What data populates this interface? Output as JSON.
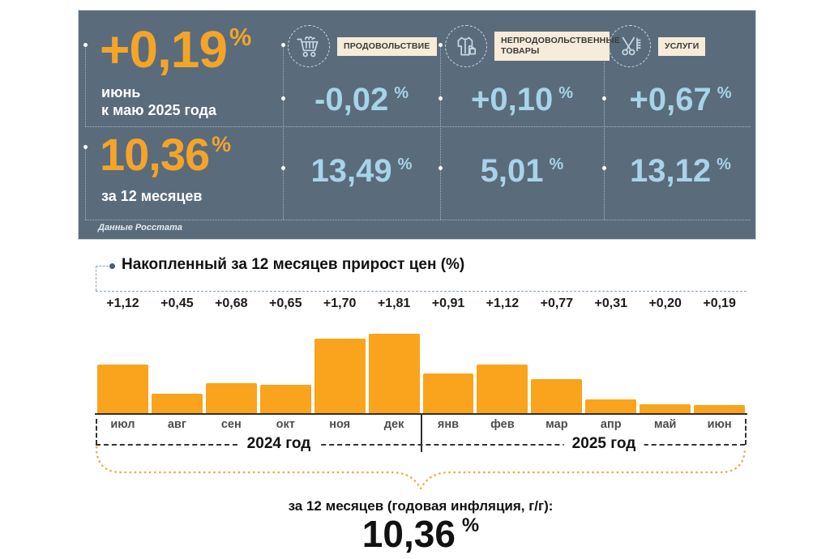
{
  "signs": {
    "percent": "%"
  },
  "panel": {
    "background": "#5a6b7c",
    "accent_orange": "#f5a428",
    "value_blue": "#a8d3e9",
    "chip_bg": "#f6ecd9",
    "headline_value": "+0,19",
    "headline_period_1": "июнь",
    "headline_period_2": "к маю 2025 года",
    "annual_value": "10,36",
    "annual_label": "за 12 месяцев",
    "source": "Данные Росстата",
    "categories": [
      {
        "icon": "cart-icon",
        "label": "ПРОДОВОЛЬСТВИЕ",
        "monthly": "-0,02",
        "annual": "13,49"
      },
      {
        "icon": "clothes-icon",
        "label": "НЕПРОДОВОЛЬСТВЕННЫЕ ТОВАРЫ",
        "monthly": "+0,10",
        "annual": "5,01"
      },
      {
        "icon": "scissors-icon",
        "label": "УСЛУГИ",
        "monthly": "+0,67",
        "annual": "13,12"
      }
    ]
  },
  "chart_data": {
    "type": "bar",
    "title": "Накопленный за 12 месяцев прирост цен (%)",
    "categories": [
      "июл",
      "авг",
      "сен",
      "окт",
      "ноя",
      "дек",
      "янв",
      "фев",
      "мар",
      "апр",
      "май",
      "июн"
    ],
    "values": [
      1.12,
      0.45,
      0.68,
      0.65,
      1.7,
      1.81,
      0.91,
      1.12,
      0.77,
      0.31,
      0.2,
      0.19
    ],
    "value_labels": [
      "+1,12",
      "+0,45",
      "+0,68",
      "+0,65",
      "+1,70",
      "+1,81",
      "+0,91",
      "+1,12",
      "+0,77",
      "+0,31",
      "+0,20",
      "+0,19"
    ],
    "year_groups": [
      "2024 год",
      "2025 год"
    ],
    "bar_color": "#f9a41c",
    "ylim": [
      0,
      2
    ],
    "grid": false,
    "legend": false
  },
  "summary": {
    "caption": "за 12 месяцев (годовая инфляция, г/г):",
    "value": "10,36"
  }
}
